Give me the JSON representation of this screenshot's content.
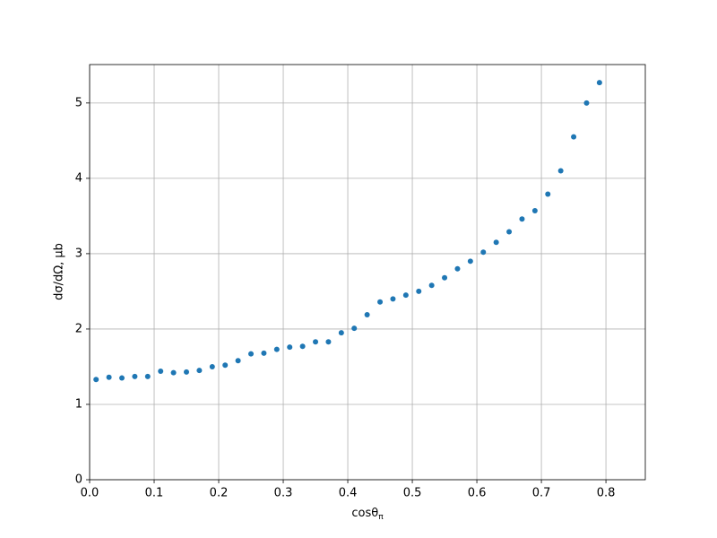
{
  "chart_data": {
    "type": "scatter",
    "xlabel": "cosθ",
    "xlabel_sub": "π",
    "ylabel": "dσ/dΩ, μb",
    "x": [
      0.01,
      0.03,
      0.05,
      0.07,
      0.09,
      0.11,
      0.13,
      0.15,
      0.17,
      0.19,
      0.21,
      0.23,
      0.25,
      0.27,
      0.29,
      0.31,
      0.33,
      0.35,
      0.37,
      0.39,
      0.41,
      0.43,
      0.45,
      0.47,
      0.49,
      0.51,
      0.53,
      0.55,
      0.57,
      0.59,
      0.61,
      0.63,
      0.65,
      0.67,
      0.69,
      0.71,
      0.73,
      0.75,
      0.77,
      0.79
    ],
    "series": [
      {
        "color": "#1f77b4",
        "values": [
          1.33,
          1.36,
          1.35,
          1.37,
          1.37,
          1.44,
          1.42,
          1.43,
          1.45,
          1.5,
          1.52,
          1.58,
          1.67,
          1.68,
          1.73,
          1.76,
          1.77,
          1.83,
          1.83,
          1.95,
          2.01,
          2.19,
          2.36,
          2.4,
          2.45,
          2.5,
          2.58,
          2.68,
          2.8,
          2.9,
          3.02,
          3.15,
          3.29,
          3.46,
          3.57,
          3.79,
          4.1,
          4.55,
          5.0,
          5.27
        ]
      }
    ],
    "xlim": [
      0,
      0.861
    ],
    "ylim": [
      0,
      5.51
    ],
    "xticks": [
      {
        "value": 0,
        "label": "0.0"
      },
      0.1,
      0.2,
      0.3,
      0.4,
      0.5,
      0.6,
      0.7,
      0.8
    ],
    "yticks": [
      0,
      1,
      2,
      3,
      4,
      5
    ],
    "grid": true
  }
}
